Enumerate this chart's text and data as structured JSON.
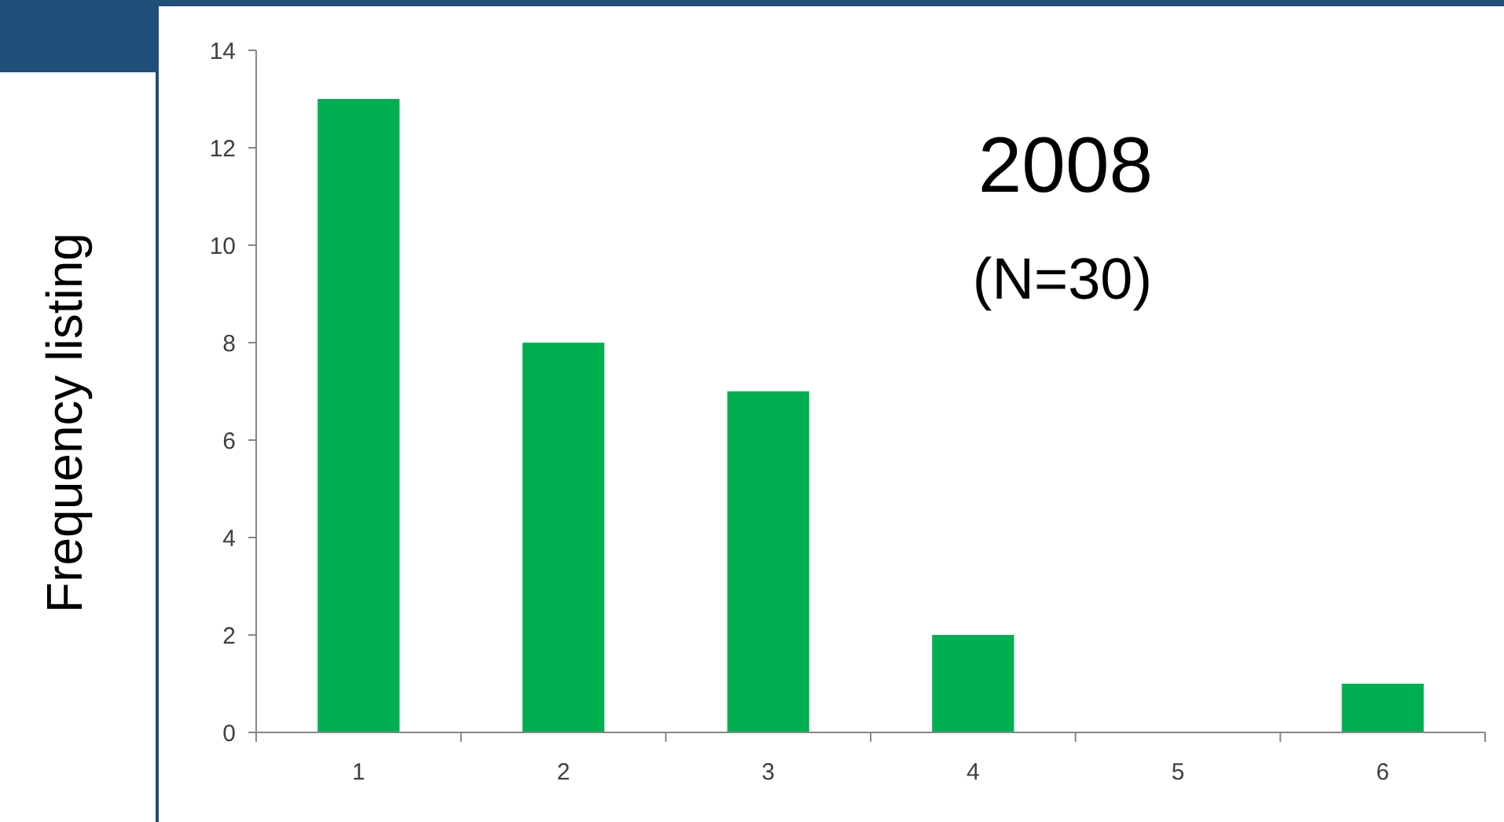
{
  "chart_data": {
    "type": "bar",
    "title": "2008",
    "subtitle": "(N=30)",
    "ylabel": "Frequency listing",
    "categories": [
      "1",
      "2",
      "3",
      "4",
      "5",
      "6"
    ],
    "values": [
      13,
      8,
      7,
      2,
      0,
      1
    ],
    "color": "#00b050",
    "ylim": [
      0,
      14
    ],
    "yticks": [
      0,
      2,
      4,
      6,
      8,
      10,
      12,
      14
    ],
    "grid": false
  }
}
